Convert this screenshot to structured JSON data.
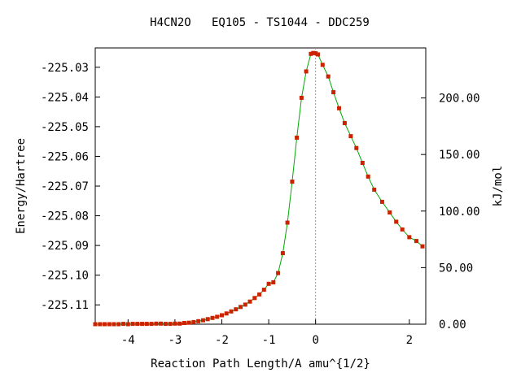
{
  "chart_data": {
    "type": "line",
    "title": "H4CN2O   EQ105 - TS1044 - DDC259",
    "xlabel": "Reaction Path Length/A amu^{1/2}",
    "ylabel": "Energy/Hartree",
    "y2label": "kJ/mol",
    "xlim": [
      -4.7,
      2.35
    ],
    "ylim": [
      -225.1165,
      -225.0235
    ],
    "y2lim": [
      0,
      244.2
    ],
    "x_ticks": [
      -4,
      -3,
      -2,
      -1,
      0,
      2
    ],
    "x_tick_labels": [
      "-4",
      "-3",
      "-2",
      "-1",
      "0",
      "2"
    ],
    "y_ticks": [
      -225.03,
      -225.04,
      -225.05,
      -225.06,
      -225.07,
      -225.08,
      -225.09,
      -225.1,
      -225.11
    ],
    "y_tick_labels": [
      "-225.03",
      "-225.04",
      "-225.05",
      "-225.06",
      "-225.07",
      "-225.08",
      "-225.09",
      "-225.10",
      "-225.11"
    ],
    "y2_ticks": [
      0,
      50,
      100,
      150,
      200
    ],
    "y2_tick_labels": [
      "0.00",
      "50.00",
      "100.00",
      "150.00",
      "200.00"
    ],
    "grid": false,
    "ts_marker_x": 0,
    "line_color": "#00aa00",
    "marker_color": "#cc2200",
    "ts_line_color": "#999999",
    "series": [
      {
        "x": [
          -4.7,
          -4.6,
          -4.5,
          -4.4,
          -4.3,
          -4.2,
          -4.1,
          -4.0,
          -3.9,
          -3.8,
          -3.7,
          -3.6,
          -3.5,
          -3.4,
          -3.3,
          -3.2,
          -3.1,
          -3.0,
          -2.9,
          -2.8,
          -2.7,
          -2.6,
          -2.5,
          -2.4,
          -2.3,
          -2.2,
          -2.1,
          -2.0,
          -1.9,
          -1.8,
          -1.7,
          -1.6,
          -1.5,
          -1.4,
          -1.3,
          -1.2,
          -1.1,
          -1.0,
          -0.9,
          -0.8,
          -0.7,
          -0.6,
          -0.5,
          -0.4,
          -0.3,
          -0.2,
          -0.1,
          -0.05,
          0.0,
          0.05,
          0.15,
          0.27,
          0.38,
          0.5,
          0.62,
          0.75,
          0.87,
          1.0,
          1.12,
          1.25,
          1.42,
          1.58,
          1.72,
          1.85,
          2.0,
          2.15,
          2.28
        ],
        "y": [
          -225.1165,
          -225.1165,
          -225.1165,
          -225.1165,
          -225.1165,
          -225.1165,
          -225.1164,
          -225.1165,
          -225.1164,
          -225.1164,
          -225.1164,
          -225.1164,
          -225.1164,
          -225.1163,
          -225.1163,
          -225.1164,
          -225.1164,
          -225.1163,
          -225.1163,
          -225.1161,
          -225.116,
          -225.1158,
          -225.1155,
          -225.1152,
          -225.1148,
          -225.1144,
          -225.114,
          -225.1135,
          -225.1129,
          -225.1122,
          -225.1115,
          -225.1107,
          -225.1099,
          -225.1089,
          -225.1077,
          -225.1065,
          -225.1049,
          -225.1029,
          -225.1024,
          -225.0993,
          -225.0926,
          -225.0823,
          -225.0685,
          -225.0537,
          -225.0403,
          -225.0314,
          -225.0255,
          -225.0252,
          -225.0253,
          -225.0257,
          -225.0292,
          -225.0331,
          -225.0384,
          -225.0438,
          -225.0488,
          -225.0532,
          -225.0572,
          -225.0622,
          -225.0668,
          -225.0712,
          -225.0753,
          -225.0789,
          -225.082,
          -225.0846,
          -225.0872,
          -225.0885,
          -225.0903
        ]
      }
    ]
  }
}
